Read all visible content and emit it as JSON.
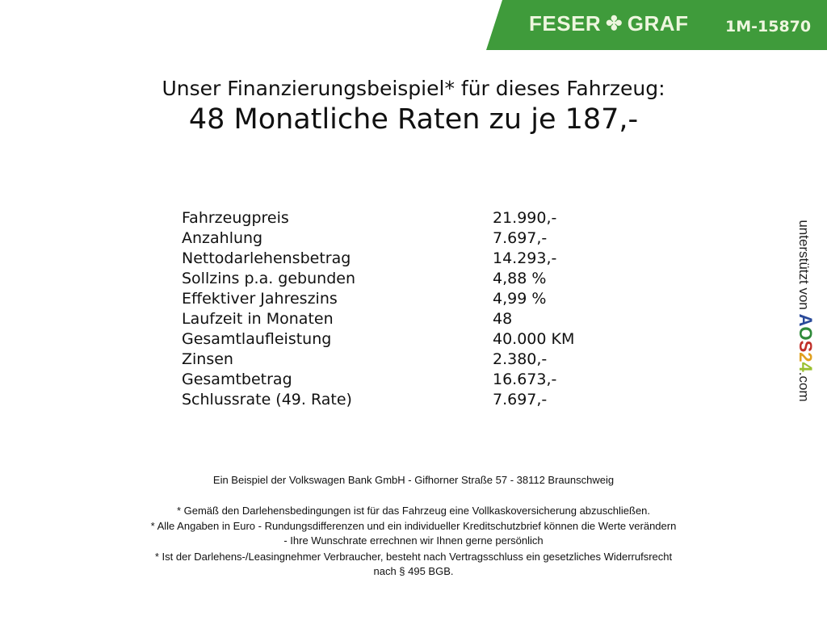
{
  "banner": {
    "brand": "FESER",
    "brand2": "GRAF",
    "clover_icon": "clover-icon",
    "code": "1M-15870",
    "color": "#3f9b3b"
  },
  "heading": {
    "line1": "Unser Finanzierungsbeispiel* für dieses Fahrzeug:",
    "line2": "48 Monatliche Raten zu je 187,-"
  },
  "rows": [
    {
      "label": "Fahrzeugpreis",
      "value": "21.990,-"
    },
    {
      "label": "Anzahlung",
      "value": "7.697,-"
    },
    {
      "label": "Nettodarlehensbetrag",
      "value": "14.293,-"
    },
    {
      "label": "Sollzins p.a. gebunden",
      "value": "4,88 %"
    },
    {
      "label": "Effektiver Jahreszins",
      "value": "4,99 %"
    },
    {
      "label": "Laufzeit in Monaten",
      "value": "48"
    },
    {
      "label": "Gesamtlaufleistung",
      "value": "40.000 KM"
    },
    {
      "label": "Zinsen",
      "value": "2.380,-"
    },
    {
      "label": "Gesamtbetrag",
      "value": "16.673,-"
    },
    {
      "label": "Schlussrate (49. Rate)",
      "value": "7.697,-"
    }
  ],
  "side": {
    "text": "unterstützt von",
    "logo": "AOS24",
    "suffix": ".com"
  },
  "footer": {
    "bank": "Ein Beispiel der Volkswagen Bank GmbH - Gifhorner Straße 57 - 38112 Braunschweig",
    "note1": "* Gemäß den Darlehensbedingungen ist für das Fahrzeug eine Vollkaskoversicherung abzuschließen.",
    "note2a": "* Alle Angaben in Euro - Rundungsdifferenzen und ein individueller Kreditschutzbrief können die Werte verändern",
    "note2b": "- Ihre Wunschrate errechnen wir Ihnen gerne persönlich",
    "note3a": "* Ist der Darlehens-/Leasingnehmer Verbraucher, besteht nach Vertragsschluss ein gesetzliches Widerrufsrecht",
    "note3b": "nach § 495 BGB."
  }
}
